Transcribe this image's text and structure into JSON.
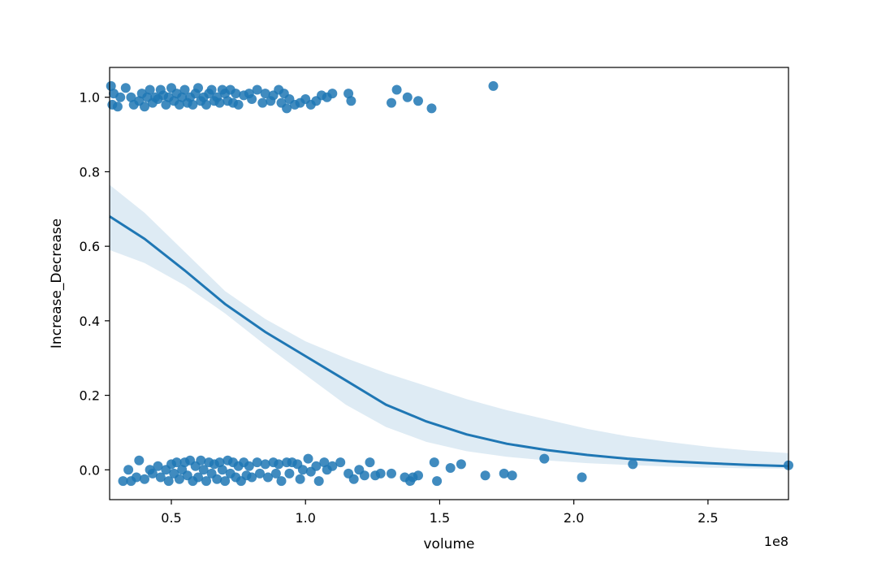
{
  "chart_data": {
    "type": "scatter",
    "title": "",
    "xlabel": "volume",
    "ylabel": "Increase_Decrease",
    "x_offset_label": "1e8",
    "xlim": [
      27000000,
      280000000
    ],
    "ylim": [
      -0.08,
      1.08
    ],
    "x_ticks": [
      {
        "value": 50000000,
        "label": "0.5"
      },
      {
        "value": 100000000,
        "label": "1.0"
      },
      {
        "value": 150000000,
        "label": "1.5"
      },
      {
        "value": 200000000,
        "label": "2.0"
      },
      {
        "value": 250000000,
        "label": "2.5"
      }
    ],
    "y_ticks": [
      {
        "value": 0.0,
        "label": "0.0"
      },
      {
        "value": 0.2,
        "label": "0.2"
      },
      {
        "value": 0.4,
        "label": "0.4"
      },
      {
        "value": 0.6,
        "label": "0.6"
      },
      {
        "value": 0.8,
        "label": "0.8"
      },
      {
        "value": 1.0,
        "label": "1.0"
      }
    ],
    "grid": false,
    "legend": "none",
    "colors": {
      "points": "#1f77b4",
      "fit_line": "#1f77b4",
      "confidence_band": "#1f77b4"
    },
    "series": [
      {
        "kind": "scatter",
        "points": [
          [
            27500000,
            1.03
          ],
          [
            28000000,
            0.98
          ],
          [
            28500000,
            1.01
          ],
          [
            30000000,
            0.975
          ],
          [
            31000000,
            1.0
          ],
          [
            33000000,
            1.025
          ],
          [
            35000000,
            1.0
          ],
          [
            36000000,
            0.98
          ],
          [
            38000000,
            0.99
          ],
          [
            39000000,
            1.01
          ],
          [
            40000000,
            0.975
          ],
          [
            41000000,
            1.0
          ],
          [
            42000000,
            1.02
          ],
          [
            43000000,
            0.985
          ],
          [
            44000000,
            1.0
          ],
          [
            45000000,
            0.995
          ],
          [
            46000000,
            1.02
          ],
          [
            47000000,
            1.005
          ],
          [
            48000000,
            0.98
          ],
          [
            49000000,
            1.0
          ],
          [
            50000000,
            1.025
          ],
          [
            51000000,
            0.99
          ],
          [
            52000000,
            1.01
          ],
          [
            53000000,
            0.98
          ],
          [
            54000000,
            1.0
          ],
          [
            55000000,
            1.02
          ],
          [
            56000000,
            0.985
          ],
          [
            57000000,
            1.0
          ],
          [
            58000000,
            0.98
          ],
          [
            59000000,
            1.01
          ],
          [
            60000000,
            1.025
          ],
          [
            61000000,
            0.99
          ],
          [
            62000000,
            1.0
          ],
          [
            63000000,
            0.98
          ],
          [
            64000000,
            1.01
          ],
          [
            65000000,
            1.02
          ],
          [
            66000000,
            0.99
          ],
          [
            67000000,
            1.0
          ],
          [
            68000000,
            0.985
          ],
          [
            69000000,
            1.02
          ],
          [
            70000000,
            1.01
          ],
          [
            71000000,
            0.99
          ],
          [
            72000000,
            1.02
          ],
          [
            73000000,
            0.985
          ],
          [
            74000000,
            1.01
          ],
          [
            75000000,
            0.98
          ],
          [
            77000000,
            1.005
          ],
          [
            79000000,
            1.01
          ],
          [
            80000000,
            0.995
          ],
          [
            82000000,
            1.02
          ],
          [
            84000000,
            0.985
          ],
          [
            85000000,
            1.01
          ],
          [
            87000000,
            0.99
          ],
          [
            88000000,
            1.005
          ],
          [
            90000000,
            1.02
          ],
          [
            91000000,
            0.985
          ],
          [
            92000000,
            1.01
          ],
          [
            93000000,
            0.97
          ],
          [
            94000000,
            0.995
          ],
          [
            96000000,
            0.98
          ],
          [
            98000000,
            0.985
          ],
          [
            100000000,
            0.995
          ],
          [
            102000000,
            0.98
          ],
          [
            104000000,
            0.99
          ],
          [
            106000000,
            1.005
          ],
          [
            108000000,
            1.0
          ],
          [
            110000000,
            1.01
          ],
          [
            116000000,
            1.01
          ],
          [
            117000000,
            0.99
          ],
          [
            132000000,
            0.985
          ],
          [
            134000000,
            1.02
          ],
          [
            138000000,
            1.0
          ],
          [
            142000000,
            0.99
          ],
          [
            147000000,
            0.97
          ],
          [
            170000000,
            1.03
          ],
          [
            32000000,
            -0.03
          ],
          [
            34000000,
            0.0
          ],
          [
            35000000,
            -0.03
          ],
          [
            37000000,
            -0.02
          ],
          [
            38000000,
            0.025
          ],
          [
            40000000,
            -0.025
          ],
          [
            42000000,
            0.0
          ],
          [
            43000000,
            -0.01
          ],
          [
            45000000,
            0.01
          ],
          [
            46000000,
            -0.02
          ],
          [
            48000000,
            0.0
          ],
          [
            49000000,
            -0.03
          ],
          [
            50000000,
            0.015
          ],
          [
            51000000,
            -0.01
          ],
          [
            52000000,
            0.02
          ],
          [
            53000000,
            -0.025
          ],
          [
            54000000,
            0.0
          ],
          [
            55000000,
            0.02
          ],
          [
            56000000,
            -0.015
          ],
          [
            57000000,
            0.025
          ],
          [
            58000000,
            -0.03
          ],
          [
            59000000,
            0.01
          ],
          [
            60000000,
            -0.02
          ],
          [
            61000000,
            0.025
          ],
          [
            62000000,
            0.0
          ],
          [
            63000000,
            -0.03
          ],
          [
            64000000,
            0.02
          ],
          [
            65000000,
            -0.01
          ],
          [
            66000000,
            0.015
          ],
          [
            67000000,
            -0.025
          ],
          [
            68000000,
            0.02
          ],
          [
            69000000,
            0.0
          ],
          [
            70000000,
            -0.03
          ],
          [
            71000000,
            0.025
          ],
          [
            72000000,
            -0.01
          ],
          [
            73000000,
            0.02
          ],
          [
            74000000,
            -0.02
          ],
          [
            75000000,
            0.01
          ],
          [
            76000000,
            -0.03
          ],
          [
            77000000,
            0.02
          ],
          [
            78000000,
            -0.015
          ],
          [
            79000000,
            0.01
          ],
          [
            80000000,
            -0.02
          ],
          [
            82000000,
            0.02
          ],
          [
            83000000,
            -0.01
          ],
          [
            85000000,
            0.015
          ],
          [
            86000000,
            -0.02
          ],
          [
            88000000,
            0.02
          ],
          [
            89000000,
            -0.01
          ],
          [
            90000000,
            0.015
          ],
          [
            91000000,
            -0.03
          ],
          [
            93000000,
            0.02
          ],
          [
            94000000,
            -0.01
          ],
          [
            95000000,
            0.02
          ],
          [
            97000000,
            0.015
          ],
          [
            98000000,
            -0.025
          ],
          [
            99000000,
            0.0
          ],
          [
            101000000,
            0.03
          ],
          [
            102000000,
            -0.005
          ],
          [
            104000000,
            0.01
          ],
          [
            105000000,
            -0.03
          ],
          [
            107000000,
            0.02
          ],
          [
            108000000,
            0.0
          ],
          [
            110000000,
            0.01
          ],
          [
            113000000,
            0.02
          ],
          [
            116000000,
            -0.01
          ],
          [
            118000000,
            -0.025
          ],
          [
            120000000,
            0.0
          ],
          [
            122000000,
            -0.015
          ],
          [
            124000000,
            0.02
          ],
          [
            126000000,
            -0.015
          ],
          [
            128000000,
            -0.01
          ],
          [
            132000000,
            -0.01
          ],
          [
            137000000,
            -0.02
          ],
          [
            139000000,
            -0.03
          ],
          [
            140000000,
            -0.02
          ],
          [
            142000000,
            -0.015
          ],
          [
            148000000,
            0.02
          ],
          [
            149000000,
            -0.03
          ],
          [
            154000000,
            0.005
          ],
          [
            158000000,
            0.015
          ],
          [
            167000000,
            -0.015
          ],
          [
            174000000,
            -0.01
          ],
          [
            177000000,
            -0.015
          ],
          [
            189000000,
            0.03
          ],
          [
            203000000,
            -0.02
          ],
          [
            222000000,
            0.015
          ],
          [
            280000000,
            0.012
          ]
        ]
      },
      {
        "kind": "line",
        "points": [
          [
            27000000,
            0.68
          ],
          [
            40000000,
            0.62
          ],
          [
            55000000,
            0.535
          ],
          [
            70000000,
            0.445
          ],
          [
            85000000,
            0.37
          ],
          [
            100000000,
            0.305
          ],
          [
            115000000,
            0.24
          ],
          [
            130000000,
            0.175
          ],
          [
            145000000,
            0.13
          ],
          [
            160000000,
            0.095
          ],
          [
            175000000,
            0.07
          ],
          [
            190000000,
            0.053
          ],
          [
            205000000,
            0.04
          ],
          [
            220000000,
            0.03
          ],
          [
            235000000,
            0.023
          ],
          [
            250000000,
            0.018
          ],
          [
            265000000,
            0.013
          ],
          [
            280000000,
            0.01
          ]
        ],
        "band_lower": [
          0.59,
          0.555,
          0.495,
          0.42,
          0.335,
          0.255,
          0.175,
          0.115,
          0.075,
          0.05,
          0.035,
          0.025,
          0.018,
          0.013,
          0.009,
          0.006,
          0.004,
          0.003
        ],
        "band_upper": [
          0.765,
          0.69,
          0.585,
          0.48,
          0.405,
          0.345,
          0.3,
          0.26,
          0.225,
          0.19,
          0.16,
          0.135,
          0.11,
          0.09,
          0.075,
          0.062,
          0.052,
          0.045
        ]
      }
    ]
  }
}
